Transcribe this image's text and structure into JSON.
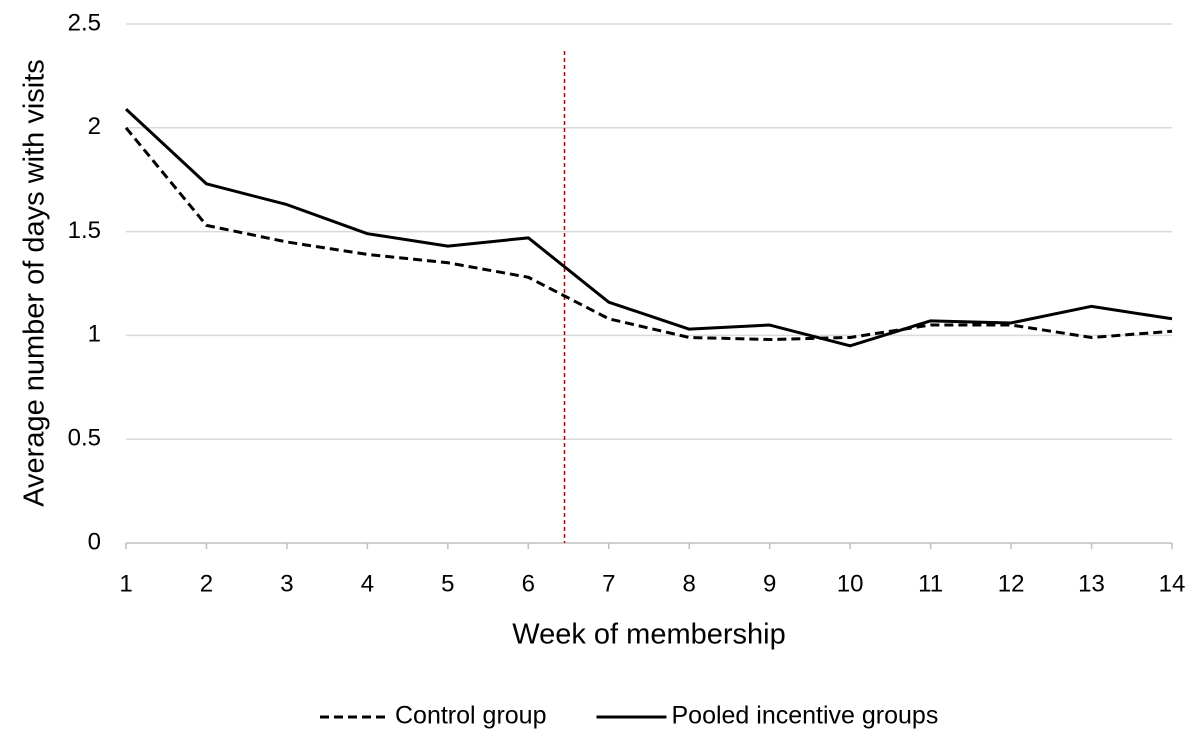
{
  "chart_data": {
    "type": "line",
    "x_label": "Week of membership",
    "y_label": "Average number of days with visits",
    "x": [
      1,
      2,
      3,
      4,
      5,
      6,
      7,
      8,
      9,
      10,
      11,
      12,
      13,
      14
    ],
    "series": [
      {
        "name": "Control group",
        "color": "#000000",
        "dash": true,
        "values": [
          2.0,
          1.53,
          1.45,
          1.39,
          1.35,
          1.28,
          1.08,
          0.99,
          0.98,
          0.99,
          1.05,
          1.05,
          0.99,
          1.02
        ]
      },
      {
        "name": "Pooled incentive groups",
        "color": "#000000",
        "dash": false,
        "values": [
          2.09,
          1.73,
          1.63,
          1.49,
          1.43,
          1.47,
          1.16,
          1.03,
          1.05,
          0.95,
          1.07,
          1.06,
          1.14,
          1.08
        ]
      }
    ],
    "xlim": [
      1,
      14
    ],
    "xticks": [
      1,
      2,
      3,
      4,
      5,
      6,
      7,
      8,
      9,
      10,
      11,
      12,
      13,
      14
    ],
    "ylim": [
      0,
      2.5
    ],
    "yticks": [
      0,
      0.5,
      1,
      1.5,
      2,
      2.5
    ],
    "grid": true,
    "legend": "bottom",
    "vline": {
      "x": 6.45,
      "y_top": 2.37,
      "color": "#c00000"
    }
  }
}
